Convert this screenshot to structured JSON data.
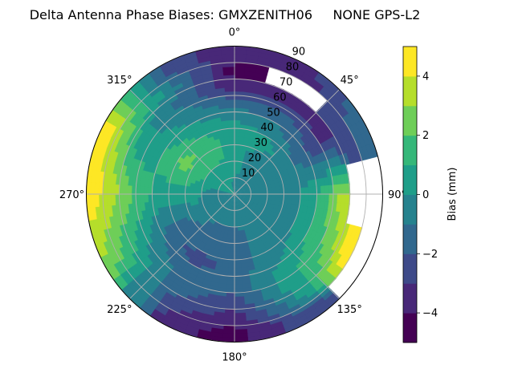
{
  "chart_data": {
    "type": "heatmap",
    "subtype": "polar-contourf",
    "title": "Delta Antenna Phase Biases: GMXZENITH06     NONE GPS-L2",
    "angular_tick_labels": [
      "0°",
      "45°",
      "90°",
      "135°",
      "180°",
      "225°",
      "270°",
      "315°"
    ],
    "radial_tick_labels": [
      "10",
      "20",
      "30",
      "40",
      "50",
      "60",
      "70",
      "80",
      "90"
    ],
    "radial_range": [
      0,
      90
    ],
    "grid": true,
    "colorbar": {
      "label": "Bias (mm)",
      "range": [
        -5,
        5
      ],
      "levels": [
        -5,
        -4,
        -3,
        -2,
        -1,
        0,
        1,
        2,
        3,
        4,
        5
      ],
      "tick_labels": [
        "−4",
        "−2",
        "0",
        "2",
        "4"
      ],
      "tick_values": [
        -4,
        -2,
        0,
        2,
        4
      ],
      "colors": [
        "#440154",
        "#482878",
        "#3e4a89",
        "#31688e",
        "#26828e",
        "#1f9e89",
        "#35b779",
        "#6ece58",
        "#b5de2b",
        "#fde725"
      ]
    },
    "azimuth_deg": [
      0,
      30,
      60,
      90,
      120,
      150,
      180,
      210,
      240,
      270,
      300,
      330
    ],
    "zenith_deg": [
      5,
      15,
      25,
      35,
      45,
      55,
      65,
      75,
      85
    ],
    "values": [
      [
        -0.5,
        0.5,
        0.5,
        0.5,
        0,
        -1.5,
        -3.5,
        -4.5,
        -3.5
      ],
      [
        -0.5,
        -0.5,
        -0.5,
        0.5,
        -0.5,
        -1.5,
        -3.5,
        null,
        -3.5
      ],
      [
        -0.5,
        -0.5,
        -0.5,
        -0.5,
        -1.5,
        -2.5,
        -3.5,
        -2.5,
        -1.5
      ],
      [
        -0.5,
        -0.5,
        -0.5,
        -0.5,
        0.5,
        1.5,
        3.5,
        null,
        null
      ],
      [
        -0.5,
        -0.5,
        -0.5,
        -0.5,
        0.5,
        1.5,
        2.5,
        4.5,
        null
      ],
      [
        -0.5,
        -0.5,
        -0.5,
        -0.5,
        -0.5,
        0.5,
        0.5,
        -0.5,
        -2.5
      ],
      [
        -0.5,
        -0.5,
        -1.5,
        -1.5,
        -1.5,
        -1.5,
        -2.5,
        -3.5,
        -4.5
      ],
      [
        -0.5,
        -0.5,
        -1.5,
        -1.5,
        -2.5,
        -1.5,
        -1.5,
        -2.5,
        -3.5
      ],
      [
        -0.5,
        -0.5,
        -0.5,
        -1.5,
        -1.5,
        -0.5,
        0.5,
        1.5,
        2.5
      ],
      [
        -0.5,
        -0.5,
        0.5,
        0.5,
        0.5,
        1.5,
        2.5,
        3.5,
        4.5
      ],
      [
        0.5,
        0.5,
        1.5,
        2.5,
        1.5,
        0.5,
        0.5,
        2.5,
        4.5
      ],
      [
        0.5,
        0.5,
        1.5,
        1.5,
        0.5,
        -0.5,
        -1.5,
        -0.5,
        -2.5
      ]
    ]
  }
}
